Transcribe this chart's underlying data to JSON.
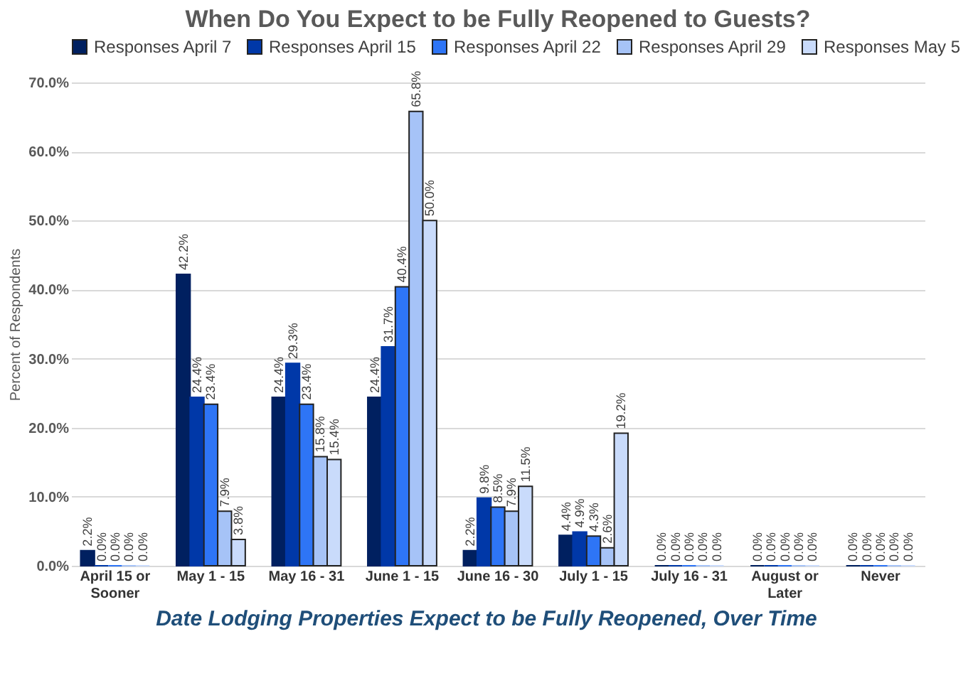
{
  "chart_data": {
    "type": "bar",
    "title": "When Do You Expect to be  Fully Reopened to Guests?",
    "ylabel": "Percent of Respondents",
    "annotations": [
      "Date Lodging Properties Expect to be Fully Reopened, Over Time"
    ],
    "categories": [
      "April 15 or Sooner",
      "May 1 - 15",
      "May 16 - 31",
      "June 1 - 15",
      "June 16 - 30",
      "July 1 - 15",
      "July 16 - 31",
      "August or Later",
      "Never"
    ],
    "ylim": [
      0,
      70
    ],
    "yticks": [
      {
        "value": 0,
        "label": "0.0%"
      },
      {
        "value": 10,
        "label": "10.0%"
      },
      {
        "value": 20,
        "label": "20.0%"
      },
      {
        "value": 30,
        "label": "30.0%"
      },
      {
        "value": 40,
        "label": "40.0%"
      },
      {
        "value": 50,
        "label": "50.0%"
      },
      {
        "value": 60,
        "label": "60.0%"
      },
      {
        "value": 70,
        "label": "70.0%"
      }
    ],
    "grid": "y",
    "legend": "top",
    "series": [
      {
        "name": "Responses April 7",
        "color": "#002060",
        "values": [
          2.2,
          42.2,
          24.4,
          24.4,
          2.2,
          4.4,
          0,
          0,
          0
        ],
        "value_labels": [
          "2.2%",
          "42.2%",
          "24.4%",
          "24.4%",
          "2.2%",
          "4.4%",
          "0.0%",
          "0.0%",
          "0.0%"
        ]
      },
      {
        "name": "Responses April 15",
        "color": "#0038a8",
        "values": [
          0,
          24.4,
          29.3,
          31.7,
          9.8,
          4.9,
          0,
          0,
          0
        ],
        "value_labels": [
          "0.0%",
          "24.4%",
          "29.3%",
          "31.7%",
          "9.8%",
          "4.9%",
          "0.0%",
          "0.0%",
          "0.0%"
        ]
      },
      {
        "name": "Responses April 22",
        "color": "#2e75f6",
        "values": [
          0,
          23.4,
          23.4,
          40.4,
          8.5,
          4.3,
          0,
          0,
          0
        ],
        "value_labels": [
          "0.0%",
          "23.4%",
          "23.4%",
          "40.4%",
          "8.5%",
          "4.3%",
          "0.0%",
          "0.0%",
          "0.0%"
        ]
      },
      {
        "name": "Responses April 29",
        "color": "#a6c3f7",
        "values": [
          0,
          7.9,
          15.8,
          65.8,
          7.9,
          2.6,
          0,
          0,
          0
        ],
        "value_labels": [
          "0.0%",
          "7.9%",
          "15.8%",
          "65.8%",
          "7.9%",
          "2.6%",
          "0.0%",
          "0.0%",
          "0.0%"
        ]
      },
      {
        "name": "Responses May 5",
        "color": "#c9dbfb",
        "values": [
          0,
          3.8,
          15.4,
          50.0,
          11.5,
          19.2,
          0,
          0,
          0
        ],
        "value_labels": [
          "0.0%",
          "3.8%",
          "15.4%",
          "50.0%",
          "11.5%",
          "19.2%",
          "0.0%",
          "0.0%",
          "0.0%"
        ]
      }
    ]
  }
}
